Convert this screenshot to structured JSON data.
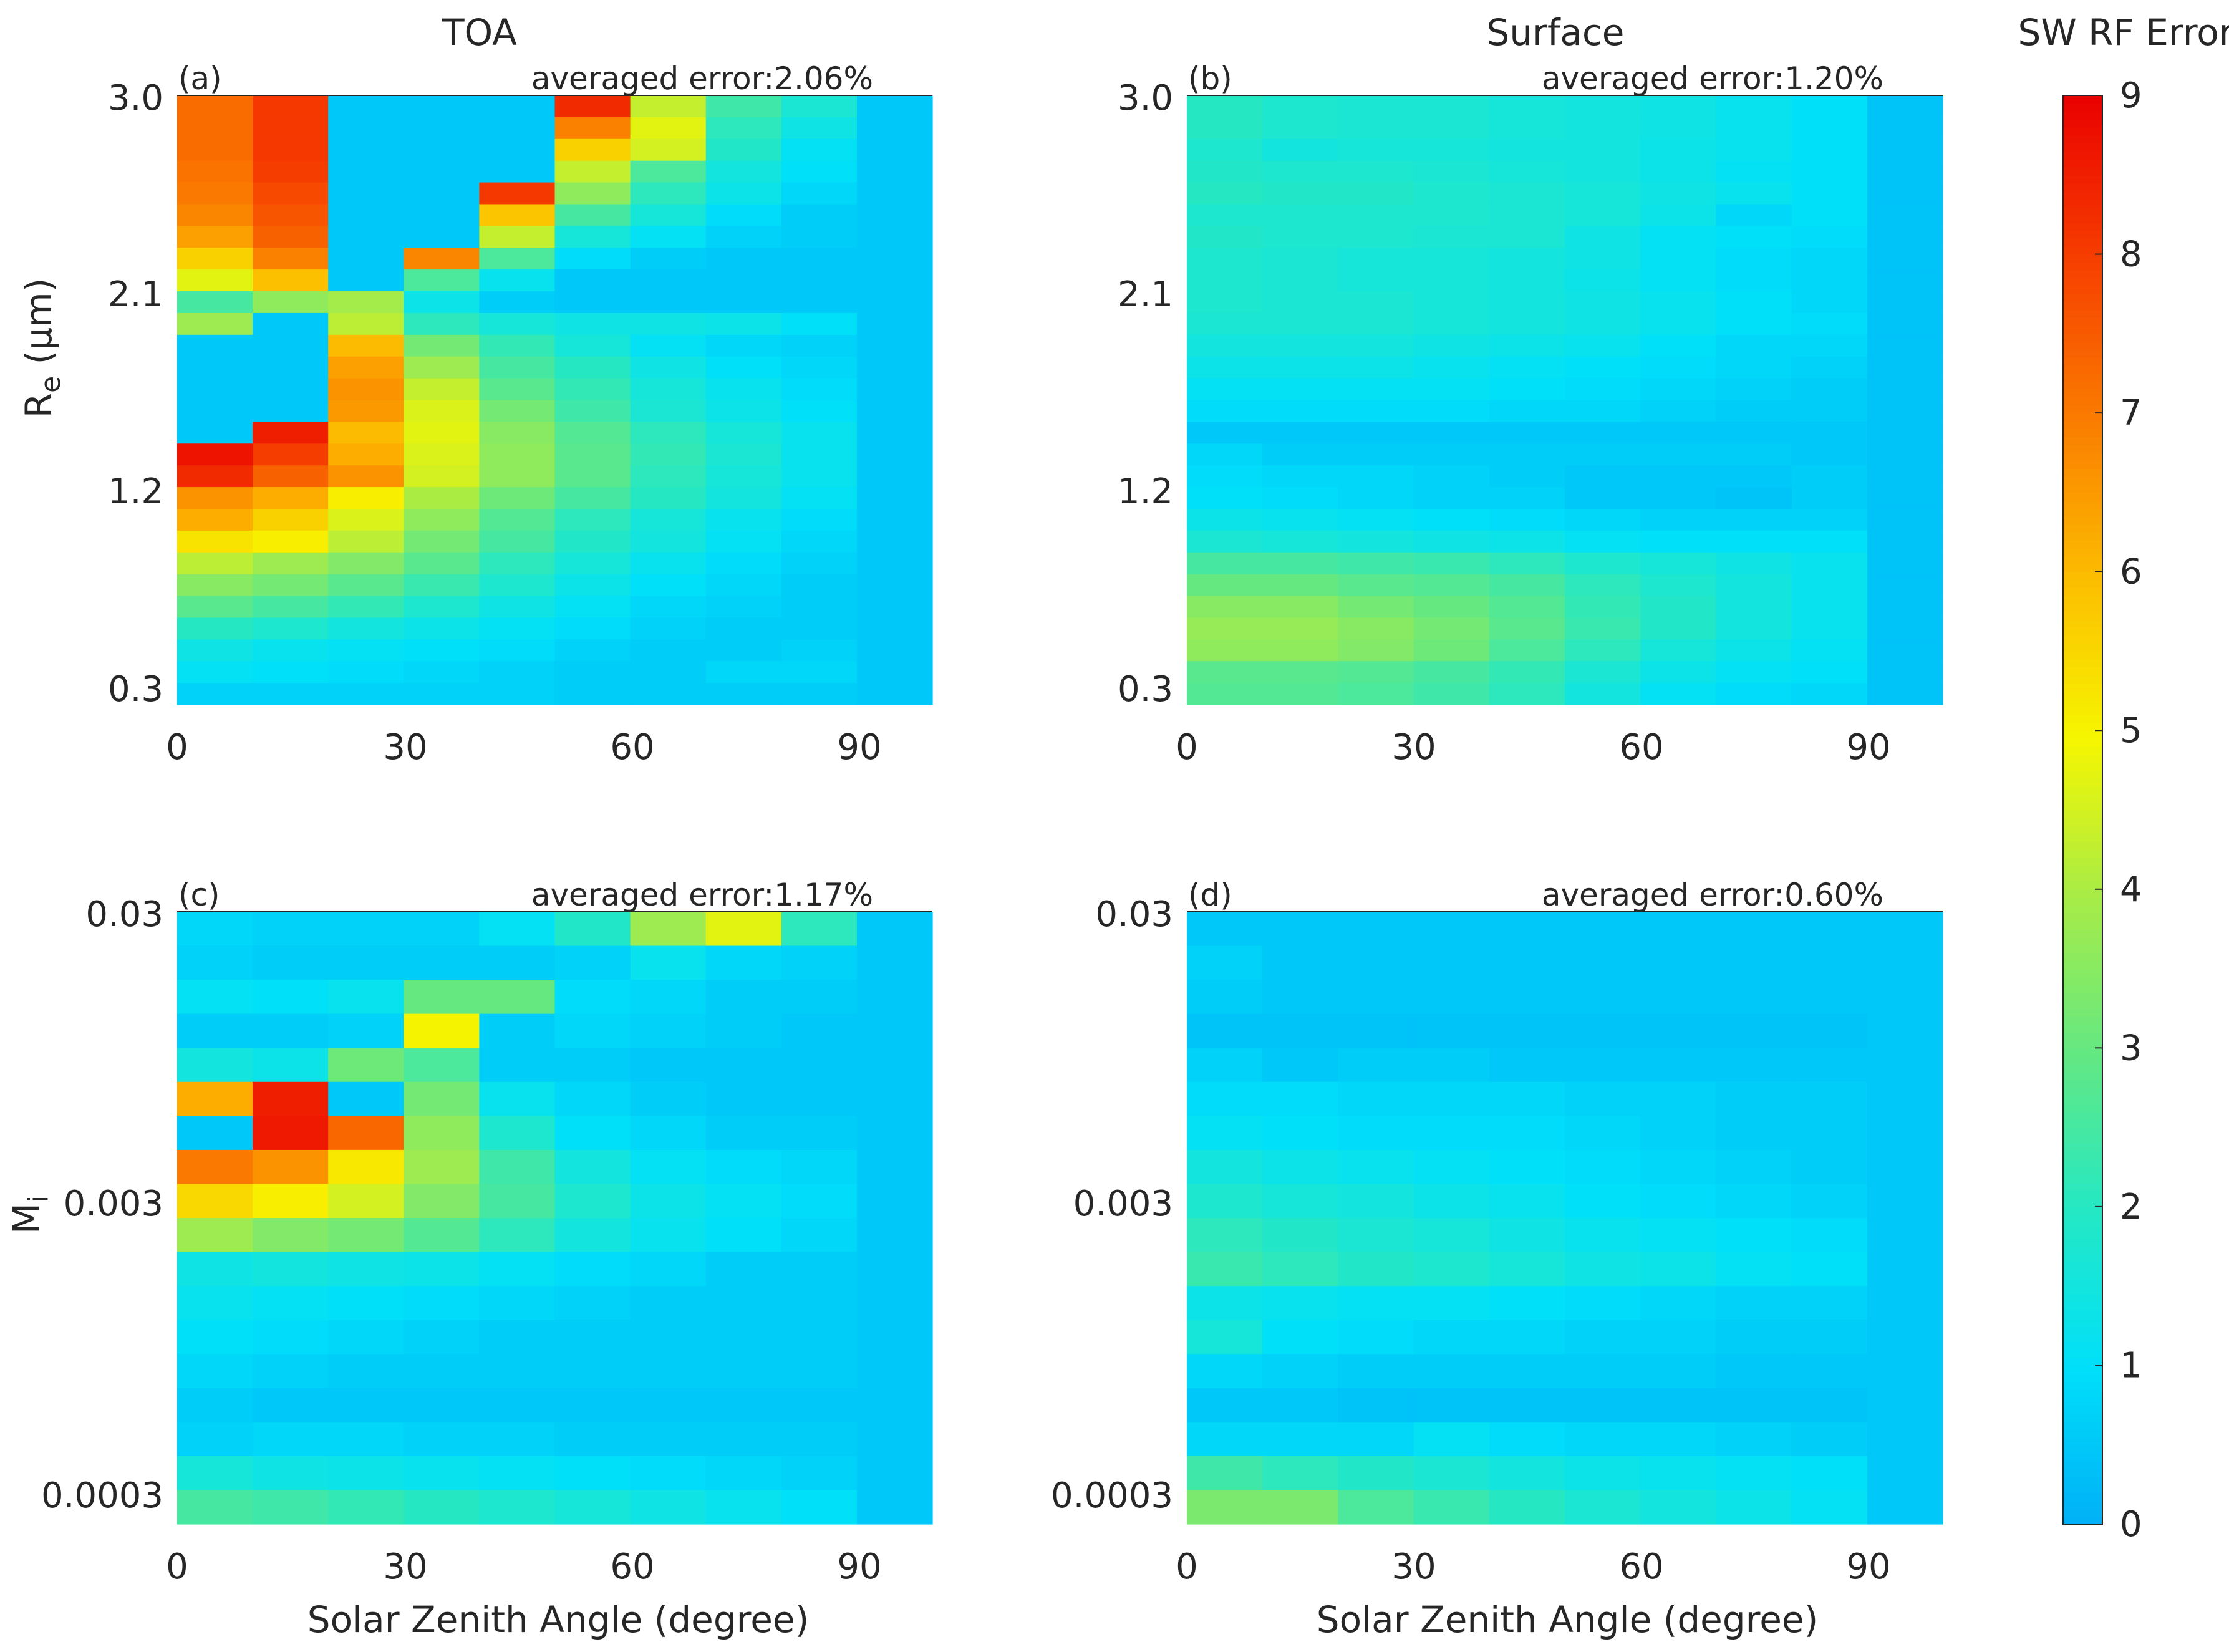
{
  "figure": {
    "col_titles": [
      "TOA",
      "Surface"
    ],
    "colorbar_title": "SW RF Error (%)",
    "x_label": "Solar Zenith Angle (degree)",
    "y_label_top": "R",
    "y_label_top_sub": "e",
    "y_label_top_unit": " (μm)",
    "y_label_bottom": "M",
    "y_label_bottom_sub": "i"
  },
  "chart_data": [
    {
      "type": "heatmap",
      "panel": "(a)",
      "title": "TOA",
      "averaged_error": "averaged error:2.06%",
      "xlabel": "",
      "ylabel": "Re (μm)",
      "xlim": [
        0,
        100
      ],
      "x_ticks": [
        "0",
        "30",
        "60",
        "90"
      ],
      "y_ticks": [
        "0.3",
        "1.2",
        "2.1",
        "3.0"
      ],
      "rows_top_to_bottom": [
        [
          7.2,
          8.1,
          0.5,
          0.5,
          0.5,
          8.3,
          4.3,
          2.4,
          1.7,
          0.5
        ],
        [
          7.2,
          8.1,
          0.5,
          0.5,
          0.5,
          6.9,
          4.7,
          2.1,
          1.4,
          0.5
        ],
        [
          7.2,
          8.1,
          0.5,
          0.5,
          0.5,
          5.6,
          4.5,
          1.9,
          1.1,
          0.5
        ],
        [
          7.1,
          8.0,
          0.5,
          0.5,
          0.5,
          4.3,
          2.6,
          1.5,
          1.0,
          0.5
        ],
        [
          7.0,
          7.8,
          0.5,
          0.5,
          8.1,
          3.6,
          2.1,
          1.3,
          0.8,
          0.5
        ],
        [
          6.8,
          7.6,
          0.5,
          0.5,
          5.8,
          2.5,
          1.6,
          0.9,
          0.6,
          0.5
        ],
        [
          6.4,
          7.4,
          0.5,
          0.5,
          4.3,
          1.6,
          1.1,
          0.7,
          0.6,
          0.5
        ],
        [
          5.6,
          6.9,
          0.5,
          6.8,
          2.6,
          0.9,
          0.6,
          0.5,
          0.5,
          0.5
        ],
        [
          4.7,
          5.9,
          0.5,
          2.6,
          1.2,
          0.5,
          0.5,
          0.5,
          0.5,
          0.5
        ],
        [
          2.5,
          3.6,
          3.9,
          1.3,
          0.6,
          0.5,
          0.5,
          0.5,
          0.5,
          0.5
        ],
        [
          3.8,
          0.5,
          4.2,
          2.1,
          1.6,
          1.4,
          1.4,
          1.3,
          1.0,
          0.5
        ],
        [
          0.5,
          0.5,
          6.0,
          3.2,
          2.2,
          1.6,
          1.1,
          0.8,
          0.7,
          0.5
        ],
        [
          0.5,
          0.5,
          6.4,
          3.8,
          2.5,
          2.0,
          1.4,
          1.0,
          0.8,
          0.5
        ],
        [
          0.5,
          0.5,
          6.6,
          4.3,
          2.8,
          2.2,
          1.6,
          1.2,
          0.9,
          0.5
        ],
        [
          0.5,
          0.5,
          6.5,
          4.6,
          3.2,
          2.4,
          1.7,
          1.3,
          1.0,
          0.5
        ],
        [
          0.5,
          8.5,
          6.0,
          4.7,
          3.5,
          2.7,
          2.1,
          1.6,
          1.2,
          0.5
        ],
        [
          8.7,
          8.0,
          6.2,
          4.6,
          3.6,
          2.8,
          2.2,
          1.7,
          1.2,
          0.5
        ],
        [
          8.3,
          7.4,
          6.6,
          4.5,
          3.6,
          2.8,
          2.1,
          1.6,
          1.2,
          0.5
        ],
        [
          6.6,
          6.2,
          5.1,
          4.0,
          3.1,
          2.5,
          2.0,
          1.5,
          1.1,
          0.5
        ],
        [
          6.2,
          5.6,
          4.6,
          3.6,
          2.7,
          2.1,
          1.6,
          1.2,
          0.9,
          0.5
        ],
        [
          5.3,
          5.1,
          4.2,
          3.2,
          2.5,
          1.9,
          1.5,
          1.1,
          0.8,
          0.5
        ],
        [
          4.2,
          3.8,
          3.4,
          2.8,
          2.1,
          1.6,
          1.2,
          0.9,
          0.7,
          0.5
        ],
        [
          3.5,
          3.2,
          2.8,
          2.3,
          1.8,
          1.3,
          1.0,
          0.8,
          0.6,
          0.5
        ],
        [
          2.8,
          2.5,
          2.2,
          1.8,
          1.4,
          1.1,
          0.8,
          0.7,
          0.6,
          0.5
        ],
        [
          2.0,
          1.8,
          1.5,
          1.3,
          1.1,
          0.9,
          0.7,
          0.6,
          0.6,
          0.5
        ],
        [
          1.4,
          1.2,
          1.1,
          1.0,
          0.9,
          0.7,
          0.6,
          0.6,
          0.7,
          0.5
        ],
        [
          1.1,
          1.0,
          0.9,
          0.8,
          0.7,
          0.6,
          0.6,
          0.8,
          0.8,
          0.5
        ],
        [
          0.7,
          0.7,
          0.7,
          0.7,
          0.7,
          0.6,
          0.6,
          0.6,
          0.6,
          0.5
        ]
      ]
    },
    {
      "type": "heatmap",
      "panel": "(b)",
      "title": "Surface",
      "averaged_error": "averaged error:1.20%",
      "xlabel": "",
      "ylabel": "",
      "xlim": [
        0,
        100
      ],
      "x_ticks": [
        "0",
        "30",
        "60",
        "90"
      ],
      "y_ticks": [
        "0.3",
        "1.2",
        "2.1",
        "3.0"
      ],
      "rows_top_to_bottom": [
        [
          2.0,
          1.8,
          1.7,
          1.7,
          1.6,
          1.5,
          1.4,
          1.2,
          1.0,
          0.4
        ],
        [
          2.0,
          1.8,
          1.7,
          1.7,
          1.6,
          1.5,
          1.4,
          1.2,
          1.0,
          0.4
        ],
        [
          1.8,
          1.5,
          1.6,
          1.6,
          1.5,
          1.5,
          1.3,
          1.2,
          1.0,
          0.4
        ],
        [
          1.9,
          1.8,
          1.8,
          1.7,
          1.6,
          1.5,
          1.3,
          1.1,
          1.0,
          0.4
        ],
        [
          2.0,
          1.9,
          1.9,
          1.8,
          1.7,
          1.6,
          1.4,
          1.2,
          1.0,
          0.4
        ],
        [
          1.8,
          1.8,
          1.8,
          1.8,
          1.7,
          1.6,
          1.3,
          0.8,
          1.0,
          0.4
        ],
        [
          1.9,
          1.8,
          1.8,
          1.7,
          1.7,
          1.4,
          1.1,
          1.0,
          0.9,
          0.4
        ],
        [
          1.8,
          1.7,
          1.6,
          1.6,
          1.5,
          1.4,
          1.1,
          0.9,
          0.8,
          0.4
        ],
        [
          1.8,
          1.7,
          1.6,
          1.6,
          1.5,
          1.3,
          1.1,
          0.9,
          0.8,
          0.4
        ],
        [
          1.8,
          1.7,
          1.7,
          1.6,
          1.5,
          1.4,
          1.2,
          1.0,
          0.8,
          0.4
        ],
        [
          1.7,
          1.7,
          1.7,
          1.6,
          1.5,
          1.4,
          1.2,
          1.0,
          0.9,
          0.4
        ],
        [
          1.5,
          1.5,
          1.5,
          1.4,
          1.3,
          1.2,
          1.0,
          0.8,
          0.8,
          0.4
        ],
        [
          1.3,
          1.3,
          1.3,
          1.2,
          1.1,
          1.0,
          0.9,
          0.8,
          0.7,
          0.4
        ],
        [
          1.1,
          1.1,
          1.1,
          1.1,
          1.0,
          0.9,
          0.8,
          0.7,
          0.6,
          0.4
        ],
        [
          0.9,
          0.9,
          0.9,
          0.9,
          0.8,
          0.8,
          0.7,
          0.6,
          0.6,
          0.4
        ],
        [
          0.5,
          0.5,
          0.5,
          0.5,
          0.5,
          0.5,
          0.5,
          0.5,
          0.5,
          0.4
        ],
        [
          0.8,
          0.6,
          0.6,
          0.6,
          0.6,
          0.6,
          0.6,
          0.6,
          0.5,
          0.4
        ],
        [
          0.9,
          0.8,
          0.8,
          0.7,
          0.6,
          0.5,
          0.5,
          0.5,
          0.6,
          0.4
        ],
        [
          1.0,
          0.9,
          0.8,
          0.7,
          0.7,
          0.5,
          0.5,
          0.4,
          0.6,
          0.4
        ],
        [
          1.3,
          1.2,
          1.1,
          1.0,
          0.9,
          0.8,
          0.7,
          0.7,
          0.7,
          0.4
        ],
        [
          1.7,
          1.6,
          1.5,
          1.4,
          1.3,
          1.1,
          1.0,
          1.0,
          1.0,
          0.4
        ],
        [
          2.5,
          2.5,
          2.4,
          2.3,
          2.1,
          1.8,
          1.6,
          1.4,
          1.2,
          0.4
        ],
        [
          3.0,
          3.0,
          2.8,
          2.7,
          2.5,
          2.1,
          1.8,
          1.5,
          1.2,
          0.4
        ],
        [
          3.5,
          3.5,
          3.2,
          3.0,
          2.7,
          2.2,
          1.9,
          1.5,
          1.2,
          0.4
        ],
        [
          3.7,
          3.7,
          3.5,
          3.2,
          2.8,
          2.3,
          1.9,
          1.5,
          1.2,
          0.4
        ],
        [
          3.6,
          3.6,
          3.4,
          3.1,
          2.6,
          2.1,
          1.6,
          1.3,
          1.1,
          0.4
        ],
        [
          2.8,
          2.8,
          2.7,
          2.5,
          2.2,
          1.7,
          1.3,
          1.1,
          1.0,
          0.4
        ],
        [
          2.7,
          2.7,
          2.6,
          2.4,
          2.1,
          1.5,
          1.1,
          0.9,
          0.8,
          0.4
        ]
      ]
    },
    {
      "type": "heatmap",
      "panel": "(c)",
      "title": "",
      "averaged_error": "averaged error:1.17%",
      "xlabel": "Solar Zenith Angle (degree)",
      "ylabel": "Mi",
      "xlim": [
        0,
        100
      ],
      "x_ticks": [
        "0",
        "30",
        "60",
        "90"
      ],
      "y_ticks": [
        "0.0003",
        "0.003",
        "0.03"
      ],
      "rows_top_to_bottom": [
        [
          0.8,
          0.7,
          0.7,
          0.7,
          1.1,
          1.9,
          3.8,
          4.7,
          2.1,
          0.5
        ],
        [
          0.7,
          0.6,
          0.6,
          0.6,
          0.6,
          0.7,
          1.2,
          0.8,
          0.7,
          0.5
        ],
        [
          1.1,
          1.0,
          1.2,
          3.0,
          3.0,
          0.9,
          0.8,
          0.6,
          0.6,
          0.5
        ],
        [
          0.6,
          0.6,
          0.7,
          5.0,
          0.6,
          0.8,
          0.7,
          0.6,
          0.5,
          0.5
        ],
        [
          1.5,
          1.3,
          3.1,
          2.6,
          0.6,
          0.6,
          0.5,
          0.5,
          0.5,
          0.5
        ],
        [
          6.2,
          8.5,
          0.5,
          3.2,
          1.2,
          0.8,
          0.6,
          0.5,
          0.5,
          0.5
        ],
        [
          0.5,
          8.6,
          7.3,
          3.6,
          1.8,
          1.0,
          0.8,
          0.6,
          0.6,
          0.5
        ],
        [
          7.0,
          6.6,
          5.2,
          3.8,
          2.4,
          1.5,
          1.1,
          0.9,
          0.8,
          0.5
        ],
        [
          5.5,
          5.1,
          4.5,
          3.4,
          2.5,
          1.8,
          1.3,
          1.1,
          0.9,
          0.5
        ],
        [
          3.8,
          3.4,
          3.2,
          2.7,
          2.1,
          1.5,
          1.2,
          1.0,
          0.8,
          0.5
        ],
        [
          1.4,
          1.5,
          1.4,
          1.3,
          1.1,
          0.9,
          0.8,
          0.6,
          0.6,
          0.5
        ],
        [
          1.2,
          1.1,
          1.0,
          0.9,
          0.8,
          0.7,
          0.6,
          0.6,
          0.6,
          0.5
        ],
        [
          1.0,
          0.9,
          0.8,
          0.7,
          0.6,
          0.6,
          0.6,
          0.6,
          0.6,
          0.5
        ],
        [
          0.8,
          0.7,
          0.6,
          0.6,
          0.6,
          0.6,
          0.6,
          0.6,
          0.6,
          0.5
        ],
        [
          0.6,
          0.5,
          0.5,
          0.5,
          0.5,
          0.5,
          0.5,
          0.5,
          0.5,
          0.5
        ],
        [
          0.7,
          0.8,
          0.8,
          0.7,
          0.7,
          0.6,
          0.6,
          0.6,
          0.6,
          0.5
        ],
        [
          1.6,
          1.4,
          1.3,
          1.2,
          1.1,
          1.0,
          0.9,
          0.8,
          0.7,
          0.5
        ],
        [
          2.5,
          2.4,
          2.2,
          2.0,
          1.8,
          1.6,
          1.4,
          1.2,
          1.0,
          0.5
        ]
      ]
    },
    {
      "type": "heatmap",
      "panel": "(d)",
      "title": "",
      "averaged_error": "averaged error:0.60%",
      "xlabel": "Solar Zenith Angle (degree)",
      "ylabel": "",
      "xlim": [
        0,
        100
      ],
      "x_ticks": [
        "0",
        "30",
        "60",
        "90"
      ],
      "y_ticks": [
        "0.0003",
        "0.003",
        "0.03"
      ],
      "rows_top_to_bottom": [
        [
          0.5,
          0.5,
          0.5,
          0.5,
          0.5,
          0.5,
          0.5,
          0.5,
          0.5,
          0.5
        ],
        [
          0.7,
          0.5,
          0.5,
          0.5,
          0.5,
          0.5,
          0.5,
          0.5,
          0.5,
          0.5
        ],
        [
          0.6,
          0.5,
          0.5,
          0.5,
          0.5,
          0.5,
          0.5,
          0.5,
          0.5,
          0.5
        ],
        [
          0.4,
          0.4,
          0.4,
          0.4,
          0.4,
          0.4,
          0.4,
          0.4,
          0.4,
          0.5
        ],
        [
          0.7,
          0.5,
          0.6,
          0.6,
          0.5,
          0.5,
          0.5,
          0.5,
          0.5,
          0.5
        ],
        [
          0.9,
          0.9,
          0.8,
          0.8,
          0.8,
          0.7,
          0.7,
          0.6,
          0.6,
          0.5
        ],
        [
          1.1,
          1.0,
          0.9,
          0.9,
          0.9,
          0.8,
          0.7,
          0.6,
          0.6,
          0.5
        ],
        [
          1.5,
          1.3,
          1.2,
          1.1,
          1.0,
          0.9,
          0.8,
          0.7,
          0.6,
          0.5
        ],
        [
          1.8,
          1.6,
          1.5,
          1.3,
          1.2,
          1.0,
          0.9,
          0.8,
          0.7,
          0.5
        ],
        [
          2.1,
          1.9,
          1.7,
          1.6,
          1.4,
          1.2,
          1.1,
          1.0,
          0.9,
          0.5
        ],
        [
          2.3,
          2.1,
          1.9,
          1.8,
          1.6,
          1.4,
          1.3,
          1.1,
          1.0,
          0.5
        ],
        [
          1.3,
          1.2,
          1.1,
          1.1,
          1.0,
          0.9,
          0.8,
          0.7,
          0.7,
          0.5
        ],
        [
          1.6,
          1.0,
          0.9,
          0.8,
          0.8,
          0.7,
          0.7,
          0.6,
          0.6,
          0.5
        ],
        [
          0.8,
          0.7,
          0.6,
          0.6,
          0.6,
          0.6,
          0.6,
          0.5,
          0.5,
          0.5
        ],
        [
          0.5,
          0.5,
          0.4,
          0.4,
          0.4,
          0.4,
          0.4,
          0.4,
          0.4,
          0.5
        ],
        [
          0.8,
          0.8,
          0.8,
          1.1,
          0.9,
          0.8,
          0.8,
          0.7,
          0.6,
          0.5
        ],
        [
          2.4,
          2.1,
          1.9,
          1.7,
          1.5,
          1.3,
          1.2,
          1.1,
          1.0,
          0.5
        ],
        [
          3.3,
          3.3,
          2.6,
          2.3,
          2.0,
          1.7,
          1.5,
          1.3,
          1.1,
          0.5
        ]
      ]
    },
    {
      "type": "colorbar",
      "title": "SW RF Error (%)",
      "range": [
        0,
        9
      ],
      "ticks": [
        "0",
        "1",
        "2",
        "3",
        "4",
        "5",
        "6",
        "7",
        "8",
        "9"
      ]
    }
  ]
}
